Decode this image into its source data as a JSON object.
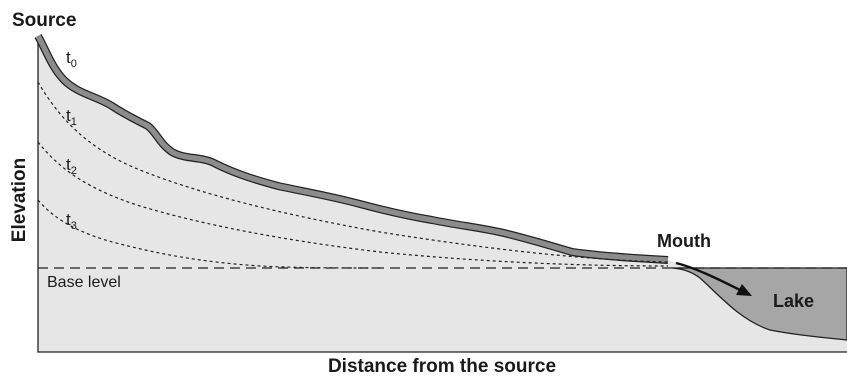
{
  "labels": {
    "source": "Source",
    "mouth": "Mouth",
    "lake": "Lake",
    "base_level": "Base level",
    "x_axis": "Distance from the source",
    "y_axis": "Elevation"
  },
  "profiles": [
    {
      "base": "t",
      "sub": "0"
    },
    {
      "base": "t",
      "sub": "1"
    },
    {
      "base": "t",
      "sub": "2"
    },
    {
      "base": "t",
      "sub": "3"
    }
  ],
  "colors": {
    "land_fill": "#e6e6e6",
    "river_band": "#8c8c8c",
    "lake_fill": "#a6a6a6",
    "line": "#222222"
  }
}
